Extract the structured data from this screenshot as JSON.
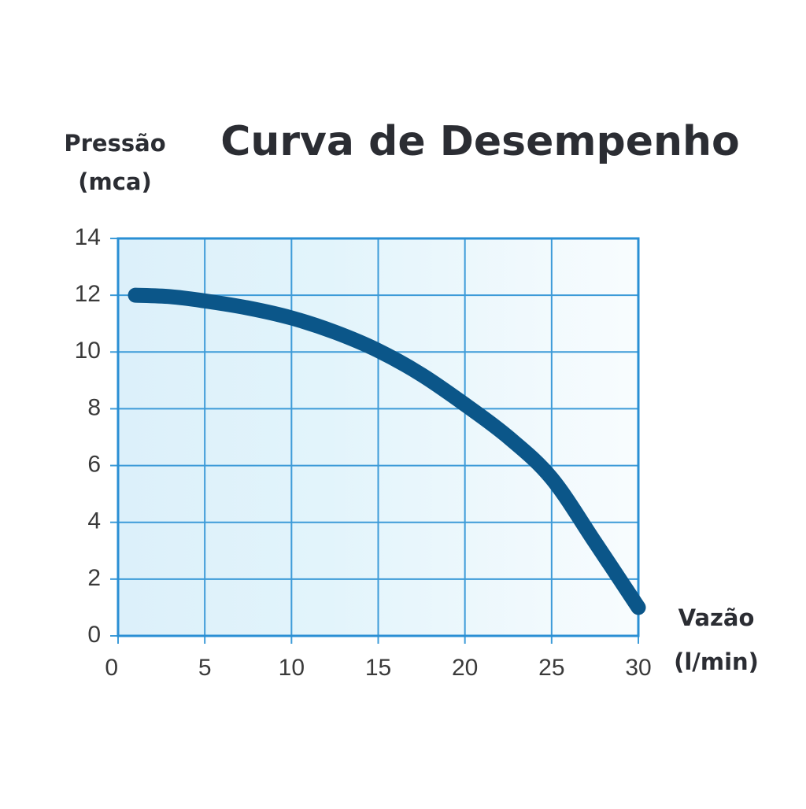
{
  "chart_data": {
    "type": "line",
    "title": "Curva de Desempenho",
    "ylabel": [
      "Pressão",
      "(mca)"
    ],
    "xlabel": [
      "Vazão",
      "(l/min)"
    ],
    "x": [
      1,
      3,
      5,
      7.5,
      10,
      12.5,
      15,
      17.5,
      20,
      22.5,
      25,
      27.5,
      30
    ],
    "series": [
      {
        "color": "#0b5689",
        "values": [
          12,
          11.95,
          11.8,
          11.55,
          11.2,
          10.7,
          10.05,
          9.2,
          8.15,
          7.0,
          5.55,
          3.3,
          1
        ]
      }
    ],
    "xlim": [
      0,
      30
    ],
    "xticks": [
      0,
      5,
      10,
      15,
      20,
      25,
      30
    ],
    "ylim": [
      0,
      14
    ],
    "yticks": [
      0,
      2,
      4,
      6,
      8,
      10,
      12,
      14
    ],
    "grid": true
  }
}
